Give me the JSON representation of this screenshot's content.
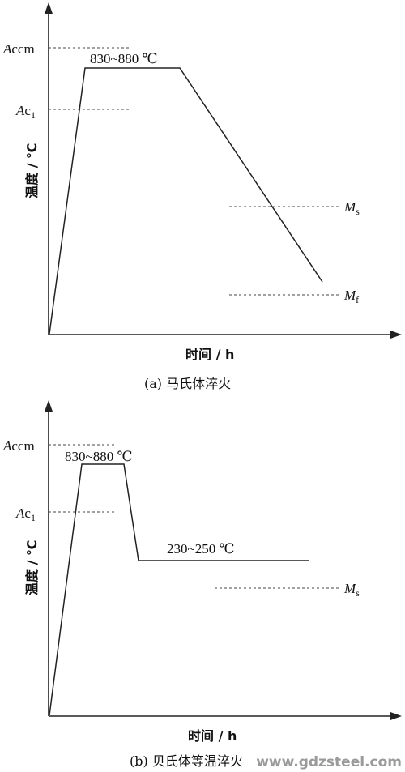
{
  "diagram_a": {
    "temp_range": "830~880 ℃",
    "y_axis_label": "温度 / ℃",
    "x_axis_label": "时间 / h",
    "caption": "(a)  马氏体淬火",
    "levels": {
      "accm_italic": "A",
      "accm_rest": "ccm",
      "ac1_italic": "A",
      "ac1_rest": "c",
      "ac1_sub": "1",
      "ms_italic": "M",
      "ms_sub": "s",
      "mf_italic": "M",
      "mf_sub": "f"
    }
  },
  "diagram_b": {
    "temp_range": "830~880 ℃",
    "hold_temp": "230~250 ℃",
    "y_axis_label": "温度 / ℃",
    "x_axis_label": "时间 / h",
    "caption": "(b)  贝氏体等温淬火",
    "levels": {
      "accm_italic": "A",
      "accm_rest": "ccm",
      "ac1_italic": "A",
      "ac1_rest": "c",
      "ac1_sub": "1",
      "ms_italic": "M",
      "ms_sub": "s"
    }
  },
  "watermark": "www.gdzsteel.com"
}
